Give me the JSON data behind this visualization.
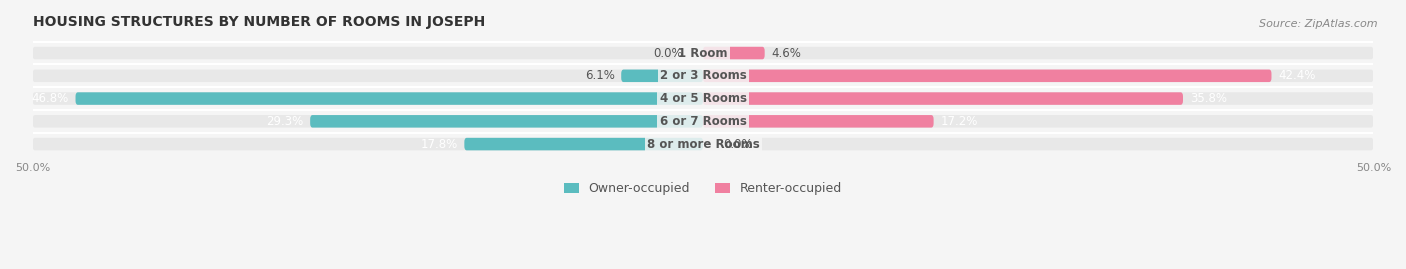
{
  "title": "HOUSING STRUCTURES BY NUMBER OF ROOMS IN JOSEPH",
  "source": "Source: ZipAtlas.com",
  "categories": [
    "1 Room",
    "2 or 3 Rooms",
    "4 or 5 Rooms",
    "6 or 7 Rooms",
    "8 or more Rooms"
  ],
  "owner_values": [
    0.0,
    6.1,
    46.8,
    29.3,
    17.8
  ],
  "renter_values": [
    4.6,
    42.4,
    35.8,
    17.2,
    0.0
  ],
  "owner_color": "#5bbcbf",
  "renter_color": "#f080a0",
  "axis_limit": 50.0,
  "bar_height": 0.55,
  "background_color": "#f5f5f5",
  "bar_bg_color": "#e8e8e8",
  "title_fontsize": 10,
  "label_fontsize": 8.5,
  "category_fontsize": 8.5,
  "tick_fontsize": 8,
  "legend_fontsize": 9,
  "source_fontsize": 8
}
